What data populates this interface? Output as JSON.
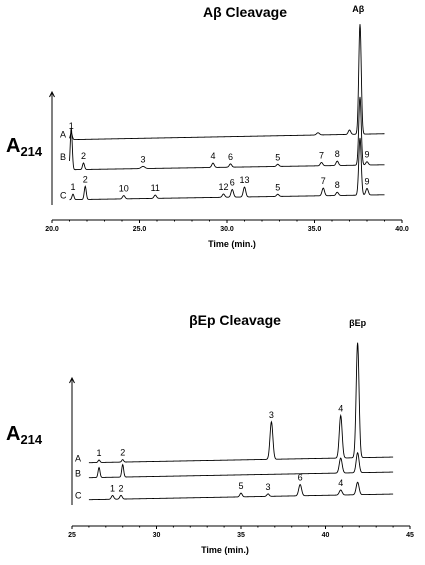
{
  "chart_data": [
    {
      "type": "line",
      "title": "Aβ Cleavage",
      "ylabel_main": "A",
      "ylabel_sub": "214",
      "xlabel": "Time (min.)",
      "xlim": [
        20.0,
        40.0
      ],
      "xticks": [
        "20.0",
        "25.0",
        "30.0",
        "35.0",
        "40.0"
      ],
      "x_tick_values": [
        20,
        25,
        30,
        35,
        40
      ],
      "top_peak_label": "Aβ",
      "top_peak_x": 37.5,
      "series": [
        {
          "name": "A",
          "baseline": 0.18,
          "slope": 0.06,
          "peaks": [
            {
              "x": 21.1,
              "h": 0.06,
              "w": 0.08,
              "label": "1"
            },
            {
              "x": 35.2,
              "h": 0.02,
              "w": 0.12,
              "label": ""
            },
            {
              "x": 37.0,
              "h": 0.04,
              "w": 0.1,
              "label": ""
            },
            {
              "x": 37.6,
              "h": 1.0,
              "w": 0.1,
              "label": ""
            }
          ]
        },
        {
          "name": "B",
          "baseline": 0.09,
          "slope": 0.05,
          "peaks": [
            {
              "x": 21.1,
              "h": 0.38,
              "w": 0.08,
              "label": ""
            },
            {
              "x": 21.8,
              "h": 0.06,
              "w": 0.08,
              "label": "2"
            },
            {
              "x": 25.2,
              "h": 0.02,
              "w": 0.15,
              "label": "3"
            },
            {
              "x": 29.2,
              "h": 0.04,
              "w": 0.1,
              "label": "4"
            },
            {
              "x": 30.2,
              "h": 0.03,
              "w": 0.1,
              "label": "6"
            },
            {
              "x": 32.9,
              "h": 0.02,
              "w": 0.1,
              "label": "5"
            },
            {
              "x": 35.4,
              "h": 0.03,
              "w": 0.1,
              "label": "7"
            },
            {
              "x": 36.3,
              "h": 0.04,
              "w": 0.1,
              "label": "8"
            },
            {
              "x": 37.6,
              "h": 0.62,
              "w": 0.1,
              "label": ""
            },
            {
              "x": 38.0,
              "h": 0.03,
              "w": 0.1,
              "label": "9"
            }
          ]
        },
        {
          "name": "C",
          "baseline": 0.0,
          "slope": 0.05,
          "peaks": [
            {
              "x": 21.2,
              "h": 0.05,
              "w": 0.08,
              "label": "1"
            },
            {
              "x": 21.9,
              "h": 0.12,
              "w": 0.08,
              "label": "2"
            },
            {
              "x": 24.1,
              "h": 0.03,
              "w": 0.1,
              "label": "10"
            },
            {
              "x": 25.9,
              "h": 0.03,
              "w": 0.1,
              "label": "11"
            },
            {
              "x": 29.8,
              "h": 0.03,
              "w": 0.1,
              "label": "12"
            },
            {
              "x": 30.3,
              "h": 0.07,
              "w": 0.1,
              "label": "6"
            },
            {
              "x": 31.0,
              "h": 0.09,
              "w": 0.1,
              "label": "13"
            },
            {
              "x": 32.9,
              "h": 0.02,
              "w": 0.1,
              "label": "5"
            },
            {
              "x": 35.5,
              "h": 0.07,
              "w": 0.1,
              "label": "7"
            },
            {
              "x": 36.3,
              "h": 0.03,
              "w": 0.1,
              "label": "8"
            },
            {
              "x": 37.6,
              "h": 0.52,
              "w": 0.1,
              "label": ""
            },
            {
              "x": 38.0,
              "h": 0.06,
              "w": 0.1,
              "label": "9"
            }
          ]
        }
      ]
    },
    {
      "type": "line",
      "title": "βEp Cleavage",
      "ylabel_main": "A",
      "ylabel_sub": "214",
      "xlabel": "Time (min.)",
      "xlim": [
        25,
        45
      ],
      "xticks": [
        "25",
        "30",
        "35",
        "40",
        "45"
      ],
      "x_tick_values": [
        25,
        30,
        35,
        40,
        45
      ],
      "top_peak_label": "βEp",
      "top_peak_x": 41.9,
      "series": [
        {
          "name": "A",
          "baseline": 0.28,
          "slope": 0.05,
          "peaks": [
            {
              "x": 26.6,
              "h": 0.02,
              "w": 0.08,
              "label": "1"
            },
            {
              "x": 28.0,
              "h": 0.02,
              "w": 0.08,
              "label": "2"
            },
            {
              "x": 36.8,
              "h": 0.3,
              "w": 0.12,
              "label": "3"
            },
            {
              "x": 40.9,
              "h": 0.34,
              "w": 0.12,
              "label": "4"
            },
            {
              "x": 41.9,
              "h": 0.92,
              "w": 0.12,
              "label": ""
            }
          ]
        },
        {
          "name": "B",
          "baseline": 0.14,
          "slope": 0.05,
          "peaks": [
            {
              "x": 26.6,
              "h": 0.08,
              "w": 0.08,
              "label": ""
            },
            {
              "x": 28.0,
              "h": 0.1,
              "w": 0.08,
              "label": ""
            },
            {
              "x": 40.9,
              "h": 0.12,
              "w": 0.12,
              "label": ""
            },
            {
              "x": 41.9,
              "h": 0.16,
              "w": 0.12,
              "label": ""
            }
          ]
        },
        {
          "name": "C",
          "baseline": 0.0,
          "slope": 0.05,
          "peaks": [
            {
              "x": 27.4,
              "h": 0.03,
              "w": 0.1,
              "label": "1"
            },
            {
              "x": 27.9,
              "h": 0.03,
              "w": 0.1,
              "label": "2"
            },
            {
              "x": 35.0,
              "h": 0.03,
              "w": 0.1,
              "label": "5"
            },
            {
              "x": 36.6,
              "h": 0.02,
              "w": 0.1,
              "label": "3"
            },
            {
              "x": 38.5,
              "h": 0.09,
              "w": 0.12,
              "label": "6"
            },
            {
              "x": 40.9,
              "h": 0.04,
              "w": 0.12,
              "label": "4"
            },
            {
              "x": 41.9,
              "h": 0.1,
              "w": 0.12,
              "label": ""
            }
          ]
        }
      ]
    }
  ]
}
